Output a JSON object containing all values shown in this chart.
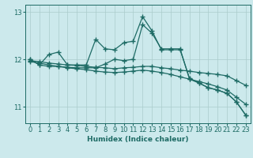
{
  "bg_color": "#cce9ec",
  "grid_color": "#aacccc",
  "line_color": "#1e6b65",
  "line_width": 0.9,
  "marker": "+",
  "marker_size": 4,
  "marker_lw": 1.0,
  "xlabel": "Humidex (Indice chaleur)",
  "xlabel_fontsize": 6.5,
  "tick_fontsize": 6.0,
  "xlim": [
    -0.5,
    23.5
  ],
  "ylim": [
    10.65,
    13.15
  ],
  "yticks": [
    11,
    12,
    13
  ],
  "xticks": [
    0,
    1,
    2,
    3,
    4,
    5,
    6,
    7,
    8,
    9,
    10,
    11,
    12,
    13,
    14,
    15,
    16,
    17,
    18,
    19,
    20,
    21,
    22,
    23
  ],
  "series": [
    {
      "x": [
        0,
        1,
        2,
        3,
        4,
        5,
        6,
        7,
        8,
        9,
        10,
        11,
        12,
        13,
        14,
        15,
        16,
        17,
        18,
        19,
        20,
        21,
        22,
        23
      ],
      "y": [
        11.97,
        11.95,
        11.92,
        11.9,
        11.88,
        11.87,
        11.85,
        11.83,
        11.82,
        11.8,
        11.82,
        11.83,
        11.85,
        11.85,
        11.82,
        11.8,
        11.77,
        11.75,
        11.72,
        11.7,
        11.68,
        11.65,
        11.55,
        11.45
      ]
    },
    {
      "x": [
        0,
        1,
        2,
        3,
        4,
        5,
        6,
        7,
        8,
        9,
        10,
        11,
        12,
        13,
        14,
        15,
        16,
        17,
        18,
        19,
        20,
        21,
        22,
        23
      ],
      "y": [
        11.95,
        11.92,
        11.88,
        11.85,
        11.82,
        11.8,
        11.78,
        11.75,
        11.73,
        11.72,
        11.73,
        11.75,
        11.77,
        11.75,
        11.72,
        11.68,
        11.63,
        11.58,
        11.53,
        11.48,
        11.42,
        11.35,
        11.2,
        11.05
      ]
    },
    {
      "x": [
        0,
        1,
        2,
        3,
        4,
        5,
        6,
        7,
        8,
        9,
        10,
        11,
        12,
        13,
        14,
        15,
        16,
        17,
        18,
        19,
        20,
        21,
        22,
        23
      ],
      "y": [
        12.0,
        11.88,
        11.85,
        11.85,
        11.83,
        11.82,
        11.82,
        11.82,
        11.9,
        12.0,
        11.97,
        12.0,
        12.73,
        12.55,
        12.22,
        12.22,
        12.22,
        11.58,
        11.5,
        11.4,
        11.35,
        11.28,
        11.1,
        10.82
      ]
    },
    {
      "x": [
        0,
        1,
        2,
        3,
        4,
        5,
        6,
        7,
        8,
        9,
        10,
        11,
        12,
        13,
        14,
        15,
        16,
        17,
        18,
        19,
        20,
        21,
        22,
        23
      ],
      "y": [
        12.0,
        11.88,
        12.1,
        12.15,
        11.88,
        11.88,
        11.88,
        12.42,
        12.22,
        12.2,
        12.35,
        12.38,
        12.9,
        12.6,
        12.2,
        12.2,
        12.2,
        11.6,
        11.5,
        11.4,
        11.35,
        11.28,
        11.1,
        10.82
      ]
    }
  ]
}
